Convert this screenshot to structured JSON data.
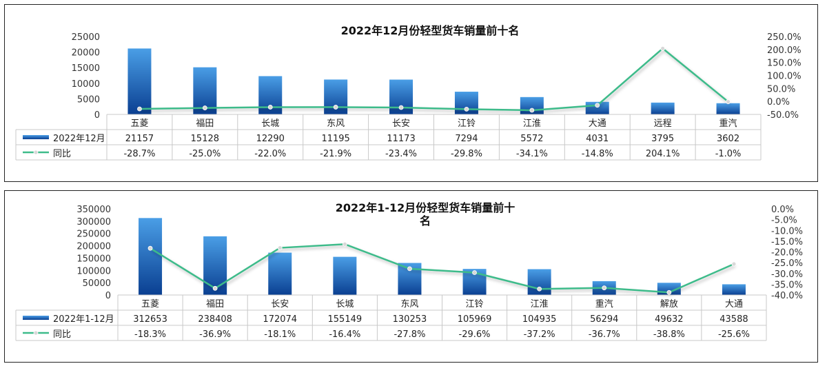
{
  "colors": {
    "bar_top": "#4a9ee6",
    "bar_bottom": "#0a3f91",
    "line": "#3dbb8a",
    "marker": "#d8d8d8",
    "grid": "#c8c8c8"
  },
  "chart_data": [
    {
      "type": "bar",
      "title": "2022年12月份轻型货车销量前十名",
      "title_lines": [
        "2022年12月份轻型货车销量前十名"
      ],
      "categories": [
        "五菱",
        "福田",
        "长城",
        "东风",
        "长安",
        "江铃",
        "江淮",
        "大通",
        "远程",
        "重汽"
      ],
      "series": [
        {
          "name": "2022年12月",
          "kind": "bar",
          "axis": "left",
          "values": [
            21157,
            15128,
            12290,
            11195,
            11173,
            7294,
            5572,
            4031,
            3795,
            3602
          ],
          "labels": [
            "21157",
            "15128",
            "12290",
            "11195",
            "11173",
            "7294",
            "5572",
            "4031",
            "3795",
            "3602"
          ]
        },
        {
          "name": "同比",
          "kind": "line",
          "axis": "right",
          "values": [
            -28.7,
            -25.0,
            -22.0,
            -21.9,
            -23.4,
            -29.8,
            -34.1,
            -14.8,
            204.1,
            -1.0
          ],
          "labels": [
            "-28.7%",
            "-25.0%",
            "-22.0%",
            "-21.9%",
            "-23.4%",
            "-29.8%",
            "-34.1%",
            "-14.8%",
            "204.1%",
            "-1.0%"
          ]
        }
      ],
      "y_left": {
        "min": 0,
        "max": 25000,
        "ticks": [
          "25000",
          "20000",
          "15000",
          "10000",
          "5000",
          "0"
        ]
      },
      "y_right": {
        "min": -50,
        "max": 250,
        "ticks": [
          "250.0%",
          "200.0%",
          "150.0%",
          "100.0%",
          "50.0%",
          "0.0%",
          "-50.0%"
        ]
      },
      "data_table": true
    },
    {
      "type": "bar",
      "title": "2022年1-12月份轻型货车销量前十名",
      "title_lines": [
        "2022年1-12月份轻型货车销量前十",
        "名"
      ],
      "categories": [
        "五菱",
        "福田",
        "长安",
        "长城",
        "东风",
        "江铃",
        "江淮",
        "重汽",
        "解放",
        "大通"
      ],
      "series": [
        {
          "name": "2022年1-12月",
          "kind": "bar",
          "axis": "left",
          "values": [
            312653,
            238408,
            172074,
            155149,
            130253,
            105969,
            104935,
            56294,
            49632,
            43588
          ],
          "labels": [
            "312653",
            "238408",
            "172074",
            "155149",
            "130253",
            "105969",
            "104935",
            "56294",
            "49632",
            "43588"
          ]
        },
        {
          "name": "同比",
          "kind": "line",
          "axis": "right",
          "values": [
            -18.3,
            -36.9,
            -18.1,
            -16.4,
            -27.8,
            -29.6,
            -37.2,
            -36.7,
            -38.8,
            -25.6
          ],
          "labels": [
            "-18.3%",
            "-36.9%",
            "-18.1%",
            "-16.4%",
            "-27.8%",
            "-29.6%",
            "-37.2%",
            "-36.7%",
            "-38.8%",
            "-25.6%"
          ]
        }
      ],
      "y_left": {
        "min": 0,
        "max": 350000,
        "ticks": [
          "350000",
          "300000",
          "250000",
          "200000",
          "150000",
          "100000",
          "50000",
          "0"
        ]
      },
      "y_right": {
        "min": -40,
        "max": 0,
        "ticks": [
          "0.0%",
          "-5.0%",
          "-10.0%",
          "-15.0%",
          "-20.0%",
          "-25.0%",
          "-30.0%",
          "-35.0%",
          "-40.0%"
        ]
      },
      "data_table": true
    }
  ]
}
